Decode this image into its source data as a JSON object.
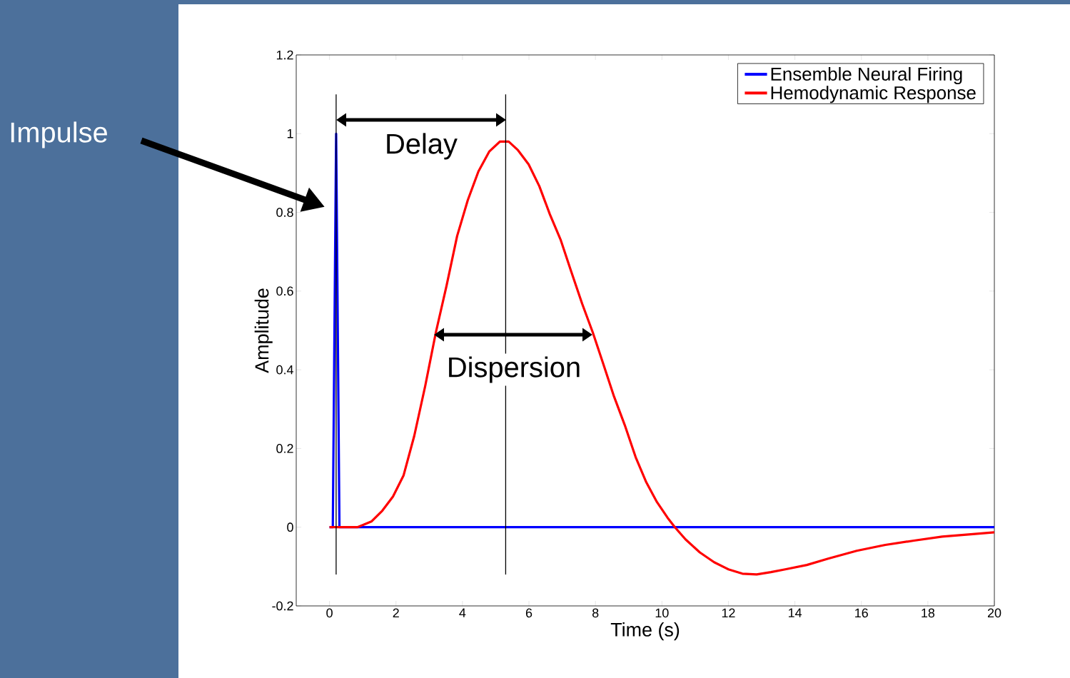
{
  "chart_data": {
    "type": "line",
    "xlabel": "Time (s)",
    "ylabel": "Amplitude",
    "xlim": [
      -1,
      20
    ],
    "ylim": [
      -0.2,
      1.2
    ],
    "xticks": [
      0,
      2,
      4,
      6,
      8,
      10,
      12,
      14,
      16,
      18,
      20
    ],
    "yticks": [
      -0.2,
      0,
      0.2,
      0.4,
      0.6,
      0.8,
      1,
      1.2
    ],
    "legend": "top right",
    "marker": "none",
    "series": [
      {
        "name": "Ensemble Neural Firing",
        "color": "#0000ff",
        "x": [
          0,
          0.1,
          0.2,
          0.3,
          20
        ],
        "values": [
          0,
          0,
          1,
          0,
          0
        ]
      },
      {
        "name": "Hemodynamic Response",
        "color": "#ff0000",
        "x": [
          0,
          0.84,
          1.27,
          1.59,
          1.91,
          2.23,
          2.55,
          2.88,
          3.2,
          3.52,
          3.84,
          4.16,
          4.48,
          4.81,
          5.13,
          5.39,
          5.67,
          5.99,
          6.31,
          6.63,
          6.95,
          7.27,
          7.6,
          7.92,
          8.24,
          8.56,
          8.88,
          9.21,
          9.53,
          9.85,
          10.17,
          10.39,
          10.71,
          11.14,
          11.57,
          12,
          12.42,
          12.85,
          13.28,
          13.71,
          14.36,
          15,
          15.86,
          16.72,
          17.58,
          18.43,
          19.29,
          20
        ],
        "values": [
          0,
          0,
          0.015,
          0.042,
          0.078,
          0.132,
          0.232,
          0.359,
          0.495,
          0.613,
          0.74,
          0.831,
          0.904,
          0.955,
          0.98,
          0.98,
          0.958,
          0.922,
          0.867,
          0.795,
          0.731,
          0.65,
          0.568,
          0.495,
          0.414,
          0.332,
          0.26,
          0.178,
          0.114,
          0.064,
          0.024,
          0,
          -0.031,
          -0.064,
          -0.089,
          -0.107,
          -0.118,
          -0.12,
          -0.114,
          -0.107,
          -0.096,
          -0.08,
          -0.06,
          -0.045,
          -0.034,
          -0.024,
          -0.018,
          -0.013
        ]
      }
    ],
    "ref_lines": [
      {
        "axis": "x",
        "value": 0.2,
        "color": "#000000"
      },
      {
        "axis": "x",
        "value": 5.3,
        "color": "#000000"
      }
    ],
    "annotations": [
      "Impulse",
      "Delay",
      "Dispersion"
    ]
  }
}
